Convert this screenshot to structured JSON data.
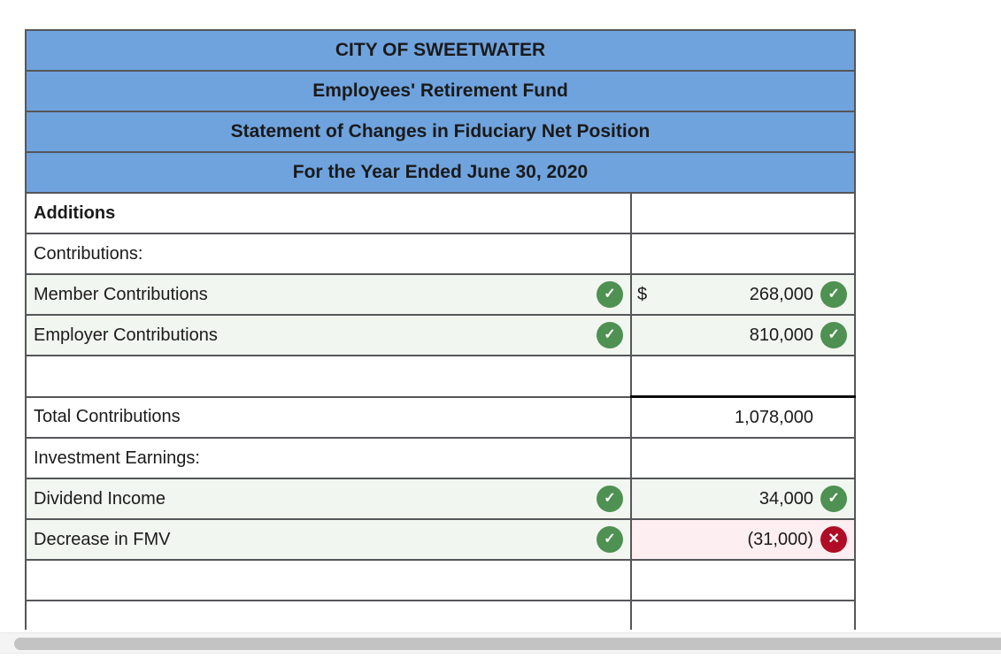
{
  "title_rows": [
    "CITY OF SWEETWATER",
    "Employees' Retirement Fund",
    "Statement of Changes in Fiduciary Net Position",
    "For the Year Ended June 30, 2020"
  ],
  "rows": [
    {
      "label": "Additions",
      "value": ""
    },
    {
      "label": "Contributions:",
      "value": ""
    },
    {
      "label": "Member Contributions",
      "currency": "$",
      "value": "268,000"
    },
    {
      "label": "Employer Contributions",
      "value": "810,000"
    },
    {
      "label": "",
      "value": ""
    },
    {
      "label": "Total Contributions",
      "value": "1,078,000"
    },
    {
      "label": "Investment Earnings:",
      "value": ""
    },
    {
      "label": "Dividend Income",
      "value": "34,000"
    },
    {
      "label": "Decrease in FMV",
      "value": "(31,000)"
    },
    {
      "label": "",
      "value": ""
    },
    {
      "label": "",
      "value": ""
    }
  ],
  "icons": {
    "correct_glyph": "✓",
    "incorrect_glyph": "✕"
  },
  "colors": {
    "header-blue": "#6fa3de",
    "row-shade": "#f2f6f0",
    "error-shade": "#fdeef1",
    "correct-green": "#4e9152",
    "error-red": "#b00c25",
    "border-gray": "#55565a"
  }
}
